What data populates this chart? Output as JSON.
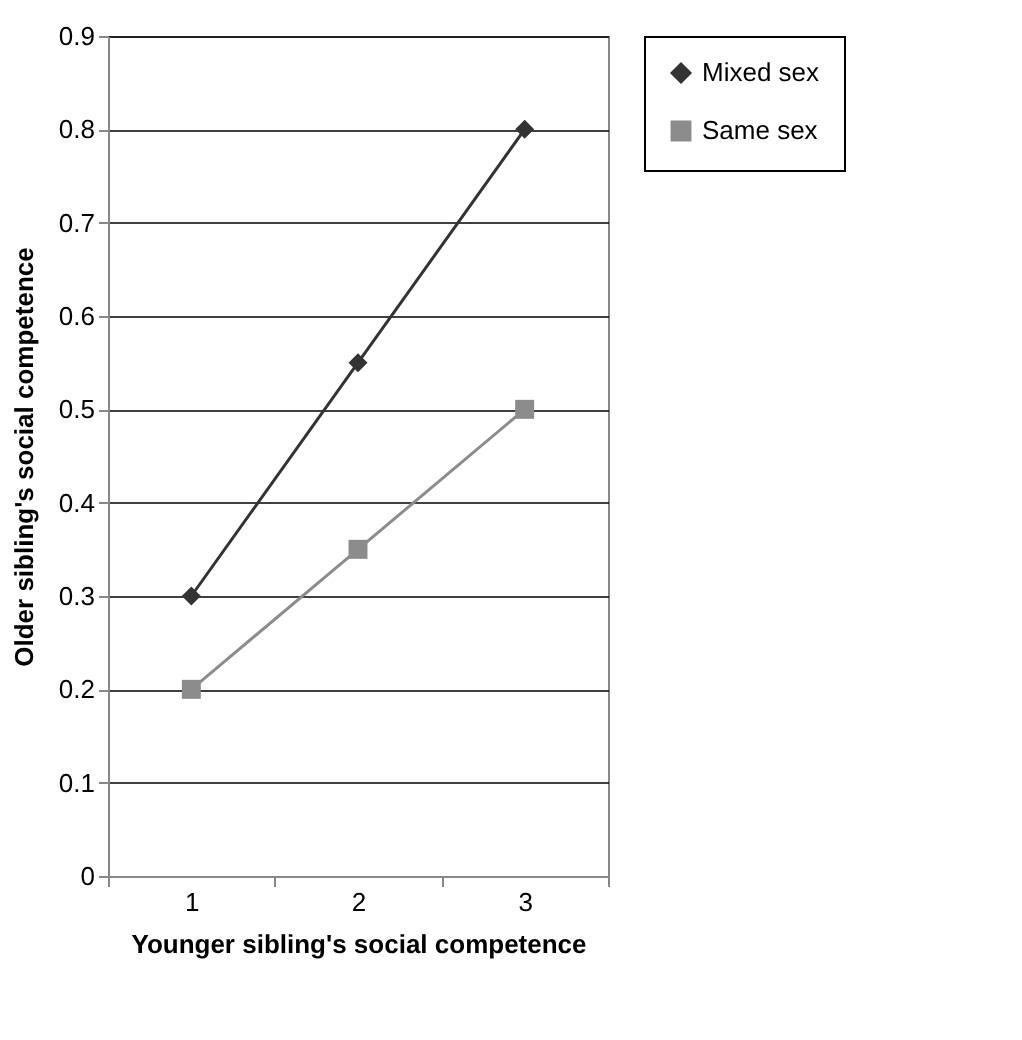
{
  "chart_data": {
    "type": "line",
    "xlabel": "Younger sibling's social competence",
    "ylabel": "Older sibling's social competence",
    "categories": [
      "1",
      "2",
      "3"
    ],
    "series": [
      {
        "name": "Mixed sex",
        "color": "#333333",
        "marker": "diamond",
        "values": [
          0.3,
          0.55,
          0.8
        ]
      },
      {
        "name": "Same sex",
        "color": "#8c8c8c",
        "marker": "square",
        "values": [
          0.2,
          0.35,
          0.5
        ]
      }
    ],
    "ylim": [
      0,
      0.9
    ],
    "yticks": [
      0,
      0.1,
      0.2,
      0.3,
      0.4,
      0.5,
      0.6,
      0.7,
      0.8,
      0.9
    ],
    "grid": "y",
    "legend": "right"
  }
}
